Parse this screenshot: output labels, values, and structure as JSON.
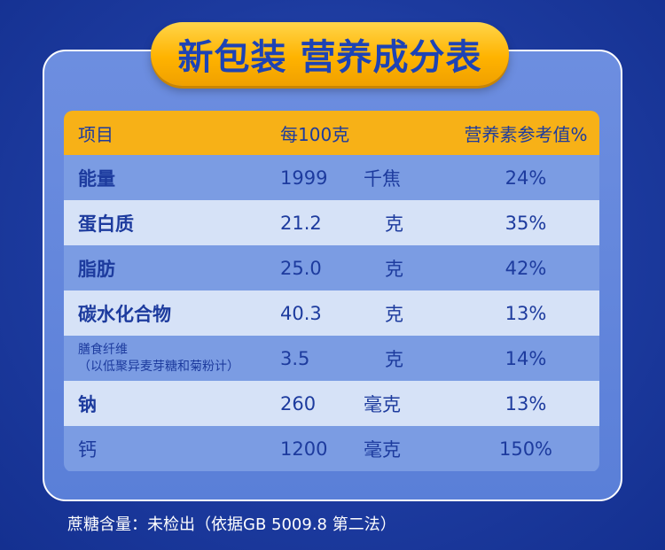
{
  "banner": {
    "title": "新包装 营养成分表"
  },
  "table": {
    "headers": {
      "item": "项目",
      "per100": "每100克",
      "nrv": "营养素参考值%"
    },
    "rows": [
      {
        "name": "能量",
        "value": "1999",
        "unit": "千焦",
        "nrv": "24%"
      },
      {
        "name": "蛋白质",
        "value": "21.2",
        "unit": "克",
        "nrv": "35%"
      },
      {
        "name": "脂肪",
        "value": "25.0",
        "unit": "克",
        "nrv": "42%"
      },
      {
        "name": "碳水化合物",
        "value": "40.3",
        "unit": "克",
        "nrv": "13%"
      },
      {
        "name": "膳食纤维",
        "name_note": "（以低聚异麦芽糖和菊粉计）",
        "value": "3.5",
        "unit": "克",
        "nrv": "14%"
      },
      {
        "name": "钠",
        "value": "260",
        "unit": "毫克",
        "nrv": "13%"
      },
      {
        "name": "钙",
        "value": "1200",
        "unit": "毫克",
        "nrv": "150%"
      }
    ]
  },
  "footnote": "蔗糖含量：未检出（依据GB 5009.8 第二法）",
  "colors": {
    "background": "#1c3a9e",
    "banner": "#ffb300",
    "header_row": "#f7b117",
    "text": "#1d3b9e"
  }
}
